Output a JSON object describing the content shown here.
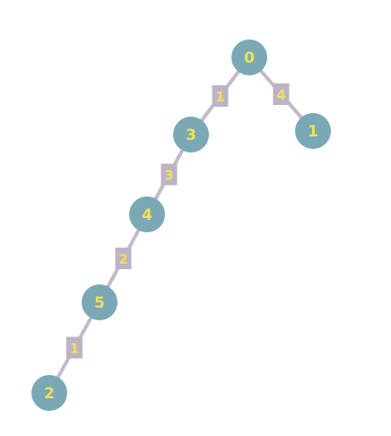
{
  "graph": {
    "colors": {
      "node_fill": "#7aa8b5",
      "node_text": "#f0e05a",
      "edge": "#c4b8cc",
      "weight_box": "#bdb3c8",
      "weight_text": "#f0e05a"
    },
    "nodes": [
      {
        "id": "n0",
        "label": "0"
      },
      {
        "id": "n3",
        "label": "3"
      },
      {
        "id": "n1",
        "label": "1"
      },
      {
        "id": "n4",
        "label": "4"
      },
      {
        "id": "n5",
        "label": "5"
      },
      {
        "id": "n2",
        "label": "2"
      }
    ],
    "edges": [
      {
        "id": "e0-3",
        "from": "n0",
        "to": "n3",
        "weight": "1"
      },
      {
        "id": "e0-1",
        "from": "n0",
        "to": "n1",
        "weight": "4"
      },
      {
        "id": "e3-4",
        "from": "n3",
        "to": "n4",
        "weight": "3"
      },
      {
        "id": "e4-5",
        "from": "n4",
        "to": "n5",
        "weight": "2"
      },
      {
        "id": "e5-2",
        "from": "n5",
        "to": "n2",
        "weight": "1"
      }
    ]
  }
}
